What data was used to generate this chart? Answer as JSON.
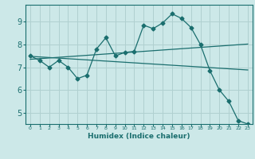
{
  "title": "",
  "xlabel": "Humidex (Indice chaleur)",
  "bg_color": "#cce8e8",
  "grid_color": "#b0d0d0",
  "line_color": "#1a6e6e",
  "xlim": [
    -0.5,
    23.5
  ],
  "ylim": [
    4.5,
    9.75
  ],
  "xticks": [
    0,
    1,
    2,
    3,
    4,
    5,
    6,
    7,
    8,
    9,
    10,
    11,
    12,
    13,
    14,
    15,
    16,
    17,
    18,
    19,
    20,
    21,
    22,
    23
  ],
  "yticks": [
    5,
    6,
    7,
    8,
    9
  ],
  "line1_x": [
    0,
    1,
    2,
    3,
    4,
    5,
    6,
    7,
    8,
    9,
    10,
    11,
    12,
    13,
    14,
    15,
    16,
    17,
    18,
    19,
    20,
    21,
    22,
    23
  ],
  "line1_y": [
    7.5,
    7.3,
    7.0,
    7.3,
    7.0,
    6.5,
    6.65,
    7.8,
    8.3,
    7.5,
    7.65,
    7.7,
    8.85,
    8.7,
    8.95,
    9.35,
    9.15,
    8.75,
    8.0,
    6.85,
    6.0,
    5.5,
    4.65,
    4.5
  ],
  "line2_x": [
    0,
    23
  ],
  "line2_y": [
    7.48,
    6.88
  ],
  "line3_x": [
    0,
    23
  ],
  "line3_y": [
    7.35,
    8.02
  ]
}
